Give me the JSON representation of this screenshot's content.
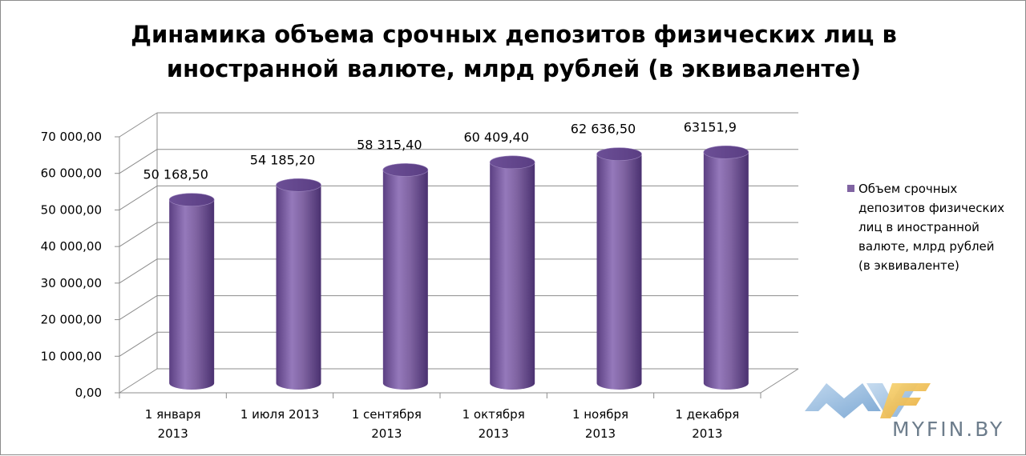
{
  "chart_data": {
    "type": "bar",
    "title": "Динамика объема  срочных депозитов физических лиц в иностранной валюте, млрд рублей (в эквиваленте)",
    "title_lines": [
      "Динамика объема  срочных депозитов физических лиц в",
      "иностранной валюте, млрд рублей (в эквиваленте)"
    ],
    "categories": [
      [
        "1 января",
        "2013"
      ],
      [
        "1 июля 2013"
      ],
      [
        "1 сентября",
        "2013"
      ],
      [
        "1 октября",
        "2013"
      ],
      [
        "1 ноября",
        "2013"
      ],
      [
        "1 декабря",
        "2013"
      ]
    ],
    "series": [
      {
        "name": "Объем  срочных депозитов физических лиц в иностранной валюте, млрд рублей (в эквиваленте)",
        "legend_lines": [
          "Объем  срочных",
          "депозитов физических",
          "лиц в иностранной",
          "валюте, млрд рублей",
          "(в эквиваленте)"
        ],
        "values": [
          50168.5,
          54185.2,
          58315.4,
          60409.4,
          62636.5,
          63151.9
        ],
        "labels": [
          "50 168,50",
          "54 185,20",
          "58 315,40",
          "60 409,40",
          "62 636,50",
          "63151,9"
        ],
        "color": "#8064a2"
      }
    ],
    "y_ticks": [
      "0,00",
      "10 000,00",
      "20 000,00",
      "30 000,00",
      "40 000,00",
      "50 000,00",
      "60 000,00",
      "70 000,00"
    ],
    "ylim": [
      0,
      70000
    ],
    "grid": true,
    "legend_position": "right"
  },
  "watermark": {
    "text": "MYFIN.BY",
    "colors": [
      "#8fb6dc",
      "#f2c24b"
    ]
  }
}
